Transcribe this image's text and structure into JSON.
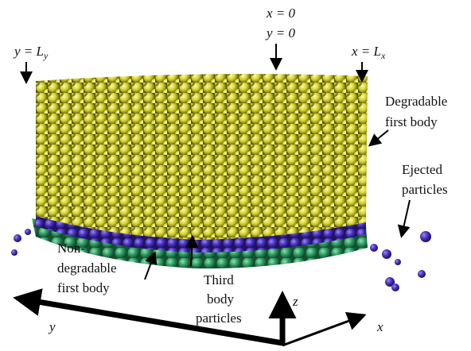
{
  "labels": {
    "x0": "x = 0",
    "y0": "y = 0",
    "yLy": {
      "main": "y = L",
      "sub": "y"
    },
    "xLx": {
      "main": "x = L",
      "sub": "x"
    },
    "degradable": [
      "Degradable",
      "first body"
    ],
    "ejected": [
      "Ejected",
      "particles"
    ],
    "nondegradable": [
      "Non-",
      "degradable",
      "first body"
    ],
    "third": [
      "Third",
      "body",
      "particles"
    ],
    "axis_y": "y",
    "axis_z": "z",
    "axis_x": "x"
  }
}
